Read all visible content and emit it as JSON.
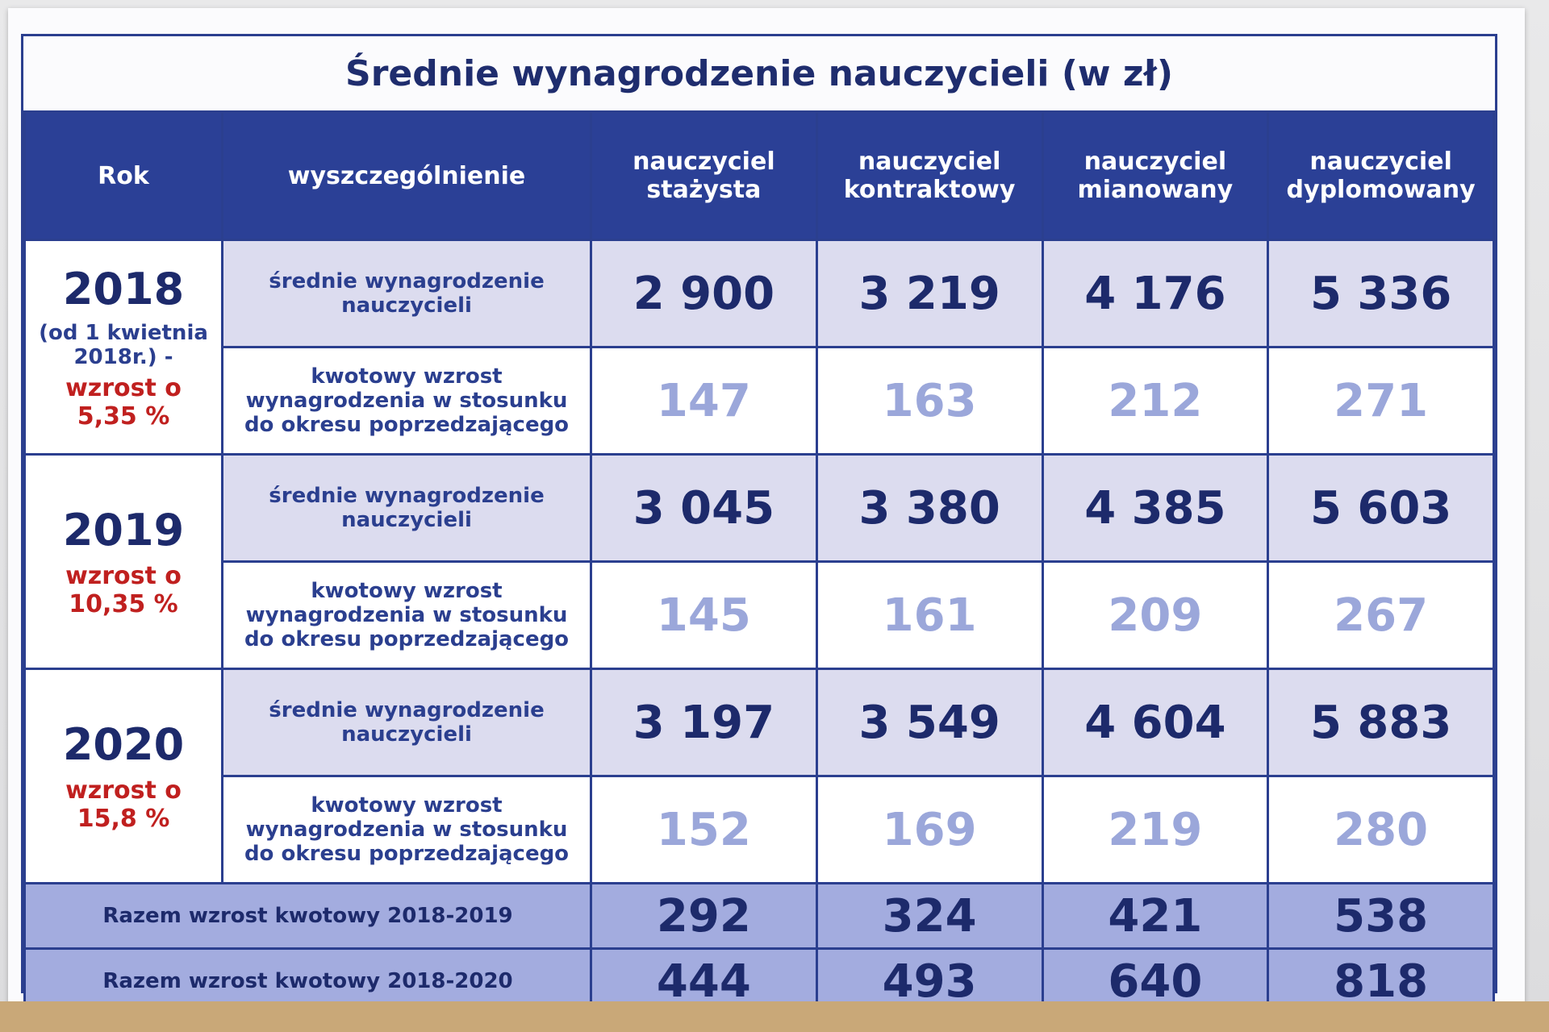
{
  "title": "Średnie wynagrodzenie nauczycieli (w zł)",
  "header": [
    "Rok",
    "wyszczególnienie",
    "nauczyciel stażysta",
    "nauczyciel kontraktowy",
    "nauczyciel mianowany",
    "nauczyciel dyplomowany"
  ],
  "years": [
    {
      "year": "2018",
      "note": "(od 1 kwietnia 2018r.) -",
      "increase": "wzrost o 5,35 %",
      "rows": [
        {
          "label": "średnie wynagrodzenie nauczycieli",
          "values": [
            "2 900",
            "3 219",
            "4 176",
            "5 336"
          ]
        },
        {
          "label": "kwotowy wzrost wynagrodzenia w stosunku do okresu poprzedzającego",
          "values": [
            "147",
            "163",
            "212",
            "271"
          ]
        }
      ]
    },
    {
      "year": "2019",
      "increase": "wzrost o 10,35 %",
      "rows": [
        {
          "label": "średnie wynagrodzenie nauczycieli",
          "values": [
            "3 045",
            "3 380",
            "4 385",
            "5 603"
          ]
        },
        {
          "label": "kwotowy wzrost wynagrodzenia w stosunku do okresu poprzedzającego",
          "values": [
            "145",
            "161",
            "209",
            "267"
          ]
        }
      ]
    },
    {
      "year": "2020",
      "increase": "wzrost o 15,8 %",
      "rows": [
        {
          "label": "średnie wynagrodzenie nauczycieli",
          "values": [
            "3 197",
            "3 549",
            "4 604",
            "5 883"
          ]
        },
        {
          "label": "kwotowy wzrost wynagrodzenia w stosunku do okresu poprzedzającego",
          "values": [
            "152",
            "169",
            "219",
            "280"
          ]
        }
      ]
    }
  ],
  "totals": [
    {
      "label": "Razem wzrost kwotowy 2018-2019",
      "values": [
        "292",
        "324",
        "421",
        "538"
      ]
    },
    {
      "label": "Razem wzrost kwotowy 2018-2020",
      "values": [
        "444",
        "493",
        "640",
        "818"
      ]
    }
  ]
}
